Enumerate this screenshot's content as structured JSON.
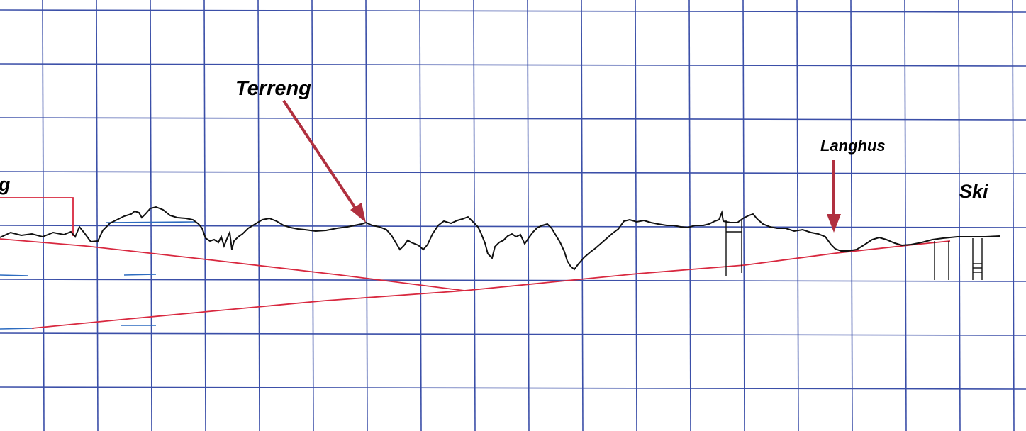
{
  "labels": {
    "terreng": "Terreng",
    "langhus": "Langhus",
    "ski": "Ski",
    "left_partial": "g"
  },
  "colors": {
    "background": "#ffffff",
    "grid": "#3b4fa8",
    "terrain": "#111111",
    "tunnel": "#d8283f",
    "arrow": "#b0303f",
    "blue_marks": "#2d6cc0"
  },
  "icons": {
    "arrow": "down-pointing-arrow"
  }
}
